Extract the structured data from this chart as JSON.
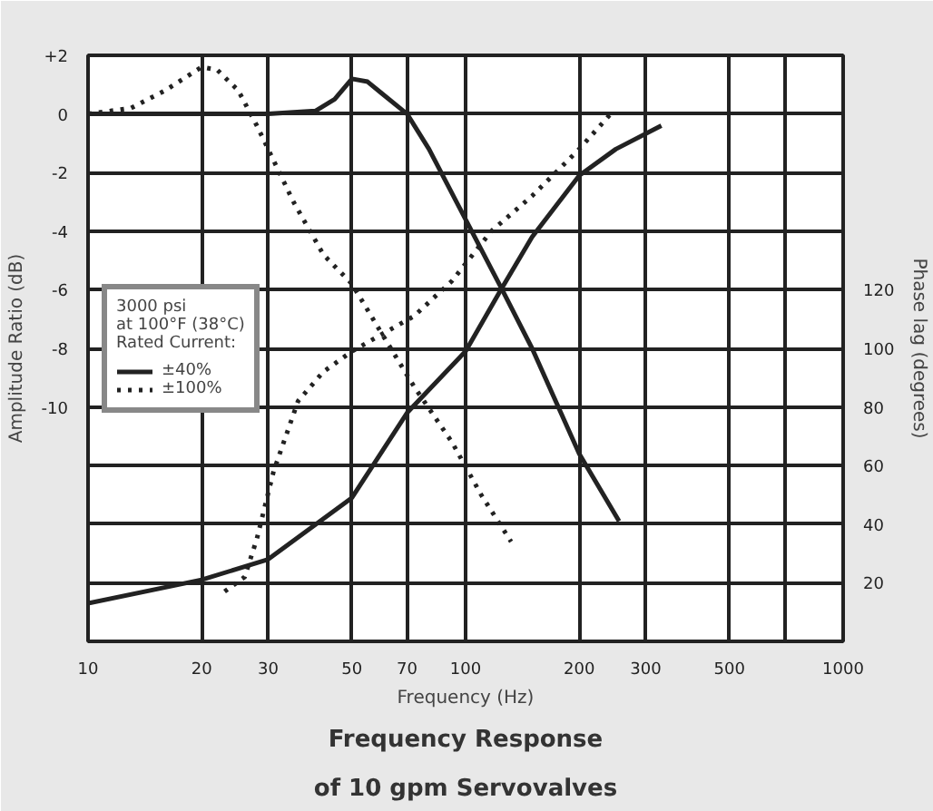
{
  "chart_data": {
    "type": "line",
    "title": "Frequency Response\nof 10 gpm Servovalves",
    "xlabel": "Frequency (Hz)",
    "ylabel": "Amplitude Ratio (dB)",
    "y2label": "Phase lag (degrees)",
    "legend_title": "3000 psi\nat 100°F (38°C)\nRated Current:",
    "log": "x",
    "grid": true,
    "legend": "left",
    "marker": "none",
    "xlim": [
      10,
      1000
    ],
    "xticks": [
      10,
      20,
      30,
      50,
      70,
      100,
      200,
      300,
      500,
      {
        "value": 700,
        "label": null
      },
      1000
    ],
    "ylim": [
      -18,
      2
    ],
    "yticks": [
      {
        "value": 2,
        "label": "+2"
      },
      0,
      -2,
      -4,
      -6,
      -8,
      -10,
      {
        "value": -12,
        "label": null
      },
      {
        "value": -14,
        "label": null
      },
      {
        "value": -16,
        "label": null
      }
    ],
    "y2lim": [
      0,
      200
    ],
    "y2ticks": [
      20,
      40,
      60,
      80,
      100,
      120
    ],
    "series": [
      {
        "name": "±40%",
        "color": "#222222",
        "line_style": "solid",
        "x": [
          10,
          20,
          30,
          40,
          45,
          50,
          55,
          60,
          70,
          80,
          100,
          125,
          150,
          200,
          255
        ],
        "values": [
          0,
          0,
          0,
          0.1,
          0.5,
          1.2,
          1.1,
          0.7,
          0,
          -1.2,
          -3.6,
          -6,
          -8,
          -11.6,
          -13.9
        ]
      },
      {
        "name": "±100%",
        "color": "#222222",
        "line_style": "dotted",
        "x": [
          10,
          13,
          16,
          20,
          22,
          25,
          28,
          35,
          42,
          50,
          60,
          73,
          92,
          110,
          132
        ],
        "values": [
          0,
          0.2,
          0.8,
          1.6,
          1.5,
          0.8,
          -0.4,
          -3,
          -4.8,
          -5.8,
          -7.5,
          -9.3,
          -11.2,
          -13,
          -14.6
        ]
      },
      {
        "color": "#222222",
        "line_style": "solid",
        "axis": "y2",
        "x": [
          10,
          20,
          30,
          50,
          70,
          100,
          124,
          150,
          200,
          250,
          330
        ],
        "values": [
          13,
          21,
          28,
          49,
          78,
          99,
          120,
          138,
          159,
          168,
          176
        ]
      },
      {
        "color": "#222222",
        "line_style": "dotted",
        "axis": "y2",
        "x": [
          23,
          26,
          28,
          31,
          36,
          42,
          50,
          73,
          92,
          117,
          150,
          200,
          246
        ],
        "values": [
          17,
          22,
          35,
          58,
          82,
          92,
          99,
          111,
          123,
          140,
          152,
          168,
          181
        ]
      }
    ]
  }
}
